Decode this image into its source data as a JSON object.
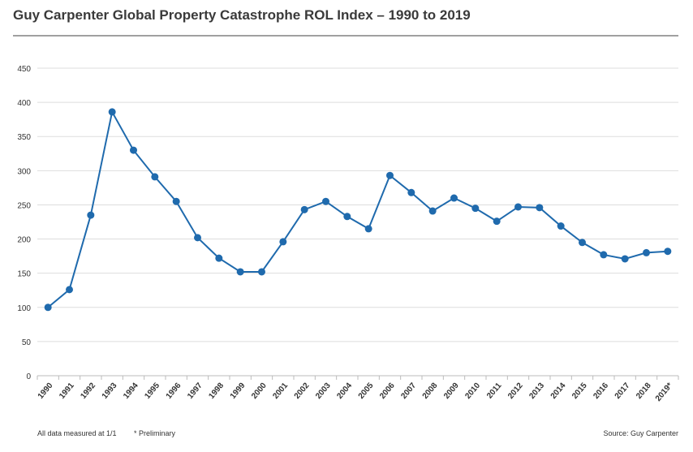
{
  "chart_data": {
    "type": "line",
    "title": "Guy Carpenter Global Property Catastrophe ROL Index – 1990 to 2019",
    "xlabel": "",
    "ylabel": "",
    "ylim": [
      0,
      450
    ],
    "yticks": [
      0,
      50,
      100,
      150,
      200,
      250,
      300,
      350,
      400,
      450
    ],
    "grid": true,
    "categories": [
      "1990",
      "1991",
      "1992",
      "1993",
      "1994",
      "1995",
      "1996",
      "1997",
      "1998",
      "1999",
      "2000",
      "2001",
      "2002",
      "2003",
      "2004",
      "2005",
      "2006",
      "2007",
      "2008",
      "2009",
      "2010",
      "2011",
      "2012",
      "2013",
      "2014",
      "2015",
      "2016",
      "2017",
      "2018",
      "2019*"
    ],
    "series": [
      {
        "name": "ROL Index",
        "color": "#1f6aad",
        "values": [
          100,
          126,
          235,
          386,
          330,
          291,
          255,
          202,
          172,
          152,
          152,
          196,
          243,
          255,
          233,
          215,
          293,
          268,
          241,
          260,
          245,
          226,
          247,
          246,
          219,
          195,
          177,
          171,
          180,
          182
        ]
      }
    ],
    "notes": {
      "left": "All data measured at 1/1",
      "middle": "* Preliminary",
      "right": "Source: Guy Carpenter"
    }
  }
}
